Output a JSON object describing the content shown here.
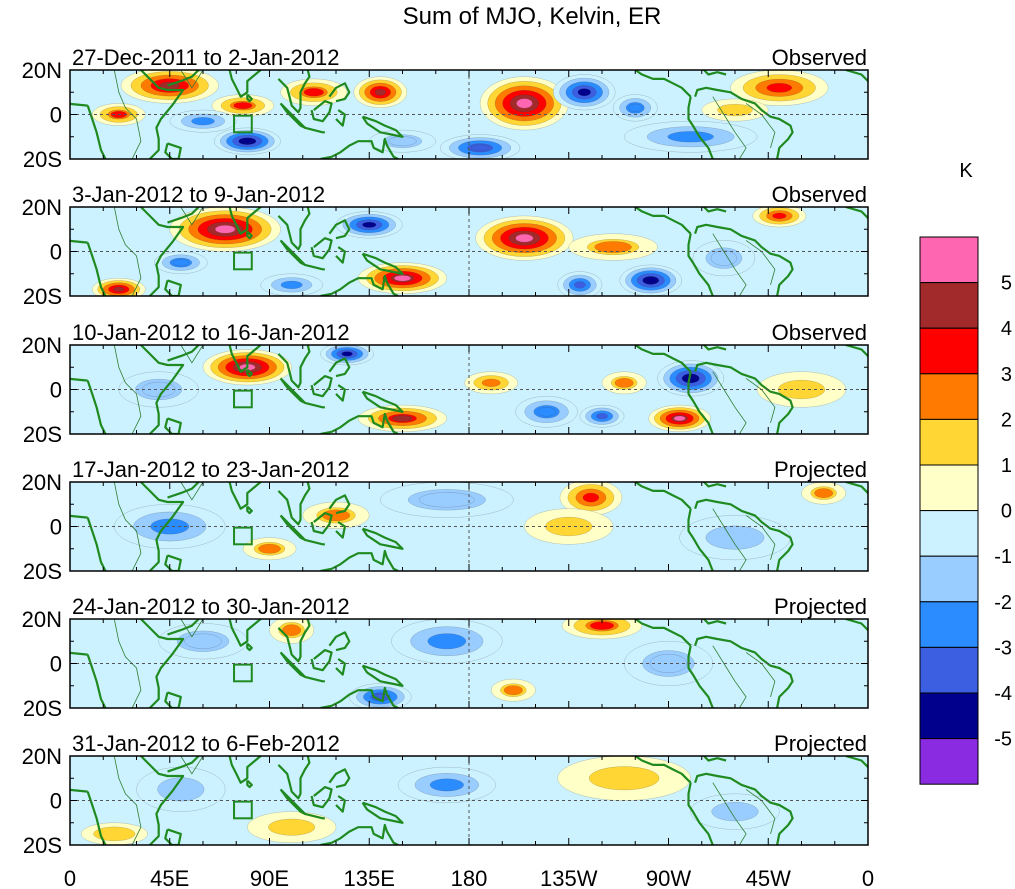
{
  "chart_data": {
    "type": "heatmap",
    "title": "Sum of MJO, Kelvin, ER",
    "x_tick_labels": [
      "0",
      "45E",
      "90E",
      "135E",
      "180",
      "135W",
      "90W",
      "45W",
      "0"
    ],
    "x_tick_degrees": [
      0,
      45,
      90,
      135,
      180,
      225,
      270,
      315,
      360
    ],
    "y_tick_labels": [
      "20N",
      "0",
      "20S"
    ],
    "y_tick_degrees": [
      20,
      0,
      -20
    ],
    "xlim": [
      0,
      360
    ],
    "ylim": [
      -20,
      20
    ],
    "colorbar": {
      "unit_label": "K",
      "tick_labels": [
        "5",
        "4",
        "3",
        "2",
        "1",
        "0",
        "-1",
        "-2",
        "-3",
        "-4",
        "-5"
      ],
      "colors": [
        "#ff66b2",
        "#a32a2a",
        "#ff0000",
        "#ff7a00",
        "#ffd633",
        "#ffffc8",
        "#ccf2ff",
        "#99ccff",
        "#2b8cff",
        "#3b5fe0",
        "#00008c",
        "#8a2be2"
      ]
    },
    "panels": [
      {
        "date_range": "27-Dec-2011 to 2-Jan-2012",
        "status": "Observed",
        "blobs": [
          {
            "lon": 45,
            "lat": 13,
            "rlon": 22,
            "rlat": 8,
            "value": 4.5
          },
          {
            "lon": 22,
            "lat": 0,
            "rlon": 12,
            "rlat": 5,
            "value": 3
          },
          {
            "lon": 78,
            "lat": 4,
            "rlon": 14,
            "rlat": 5,
            "value": 3
          },
          {
            "lon": 110,
            "lat": 10,
            "rlon": 15,
            "rlat": 6,
            "value": 3
          },
          {
            "lon": 140,
            "lat": 10,
            "rlon": 12,
            "rlat": 7,
            "value": 4.5
          },
          {
            "lon": 205,
            "lat": 5,
            "rlon": 20,
            "rlat": 12,
            "value": 5.5
          },
          {
            "lon": 320,
            "lat": 12,
            "rlon": 22,
            "rlat": 8,
            "value": 3.5
          },
          {
            "lon": 232,
            "lat": 10,
            "rlon": 14,
            "rlat": 8,
            "value": -4.5
          },
          {
            "lon": 255,
            "lat": 3,
            "rlon": 10,
            "rlat": 6,
            "value": -3
          },
          {
            "lon": 80,
            "lat": -12,
            "rlon": 15,
            "rlat": 6,
            "value": -5
          },
          {
            "lon": 60,
            "lat": -3,
            "rlon": 15,
            "rlat": 5,
            "value": -2.5
          },
          {
            "lon": 185,
            "lat": -15,
            "rlon": 18,
            "rlat": 6,
            "value": -4
          },
          {
            "lon": 150,
            "lat": -12,
            "rlon": 15,
            "rlat": 5,
            "value": -2
          },
          {
            "lon": 280,
            "lat": -10,
            "rlon": 30,
            "rlat": 7,
            "value": -2.5
          },
          {
            "lon": 300,
            "lat": 2,
            "rlon": 15,
            "rlat": 5,
            "value": 1.5
          }
        ]
      },
      {
        "date_range": "3-Jan-2012 to 9-Jan-2012",
        "status": "Observed",
        "blobs": [
          {
            "lon": 70,
            "lat": 10,
            "rlon": 25,
            "rlat": 10,
            "value": 5.5
          },
          {
            "lon": 205,
            "lat": 6,
            "rlon": 22,
            "rlat": 10,
            "value": 5.5
          },
          {
            "lon": 150,
            "lat": -12,
            "rlon": 20,
            "rlat": 7,
            "value": 5
          },
          {
            "lon": 22,
            "lat": -17,
            "rlon": 12,
            "rlat": 5,
            "value": 4.5
          },
          {
            "lon": 320,
            "lat": 16,
            "rlon": 12,
            "rlat": 5,
            "value": 3.5
          },
          {
            "lon": 245,
            "lat": 2,
            "rlon": 20,
            "rlat": 6,
            "value": 2
          },
          {
            "lon": 135,
            "lat": 12,
            "rlon": 15,
            "rlat": 6,
            "value": -4.5
          },
          {
            "lon": 262,
            "lat": -13,
            "rlon": 14,
            "rlat": 7,
            "value": -5
          },
          {
            "lon": 230,
            "lat": -15,
            "rlon": 10,
            "rlat": 6,
            "value": -3.5
          },
          {
            "lon": 50,
            "lat": -5,
            "rlon": 12,
            "rlat": 5,
            "value": -3
          },
          {
            "lon": 100,
            "lat": -15,
            "rlon": 14,
            "rlat": 5,
            "value": -2.5
          },
          {
            "lon": 295,
            "lat": -3,
            "rlon": 14,
            "rlat": 8,
            "value": -2
          }
        ]
      },
      {
        "date_range": "10-Jan-2012 to 16-Jan-2012",
        "status": "Observed",
        "blobs": [
          {
            "lon": 80,
            "lat": 10,
            "rlon": 20,
            "rlat": 8,
            "value": 5.5
          },
          {
            "lon": 150,
            "lat": -13,
            "rlon": 20,
            "rlat": 6,
            "value": 4
          },
          {
            "lon": 275,
            "lat": -13,
            "rlon": 14,
            "rlat": 6,
            "value": 5
          },
          {
            "lon": 190,
            "lat": 3,
            "rlon": 12,
            "rlat": 5,
            "value": 2.5
          },
          {
            "lon": 250,
            "lat": 3,
            "rlon": 10,
            "rlat": 5,
            "value": 2
          },
          {
            "lon": 125,
            "lat": 16,
            "rlon": 12,
            "rlat": 5,
            "value": -4.5
          },
          {
            "lon": 280,
            "lat": 5,
            "rlon": 15,
            "rlat": 8,
            "value": -5
          },
          {
            "lon": 215,
            "lat": -10,
            "rlon": 14,
            "rlat": 7,
            "value": -3
          },
          {
            "lon": 240,
            "lat": -12,
            "rlon": 10,
            "rlat": 5,
            "value": -3.5
          },
          {
            "lon": 40,
            "lat": 0,
            "rlon": 18,
            "rlat": 8,
            "value": -2
          },
          {
            "lon": 330,
            "lat": 0,
            "rlon": 20,
            "rlat": 8,
            "value": 1.5
          }
        ]
      },
      {
        "date_range": "17-Jan-2012 to 23-Jan-2012",
        "status": "Projected",
        "blobs": [
          {
            "lon": 235,
            "lat": 13,
            "rlon": 14,
            "rlat": 8,
            "value": 3.5
          },
          {
            "lon": 120,
            "lat": 5,
            "rlon": 15,
            "rlat": 6,
            "value": 2
          },
          {
            "lon": 90,
            "lat": -10,
            "rlon": 12,
            "rlat": 5,
            "value": 2
          },
          {
            "lon": 225,
            "lat": 0,
            "rlon": 20,
            "rlat": 8,
            "value": 1.5
          },
          {
            "lon": 45,
            "lat": 0,
            "rlon": 25,
            "rlat": 10,
            "value": -2.5
          },
          {
            "lon": 170,
            "lat": 12,
            "rlon": 30,
            "rlat": 8,
            "value": -2
          },
          {
            "lon": 300,
            "lat": -5,
            "rlon": 25,
            "rlat": 10,
            "value": -1.5
          },
          {
            "lon": 340,
            "lat": 15,
            "rlon": 10,
            "rlat": 5,
            "value": 2
          }
        ]
      },
      {
        "date_range": "24-Jan-2012 to 30-Jan-2012",
        "status": "Projected",
        "blobs": [
          {
            "lon": 240,
            "lat": 17,
            "rlon": 18,
            "rlat": 6,
            "value": 3
          },
          {
            "lon": 100,
            "lat": 15,
            "rlon": 10,
            "rlat": 6,
            "value": 2
          },
          {
            "lon": 200,
            "lat": -12,
            "rlon": 10,
            "rlat": 5,
            "value": 2
          },
          {
            "lon": 140,
            "lat": -15,
            "rlon": 14,
            "rlat": 6,
            "value": -4
          },
          {
            "lon": 60,
            "lat": 10,
            "rlon": 20,
            "rlat": 8,
            "value": -2
          },
          {
            "lon": 170,
            "lat": 10,
            "rlon": 25,
            "rlat": 10,
            "value": -2.5
          },
          {
            "lon": 270,
            "lat": 0,
            "rlon": 20,
            "rlat": 10,
            "value": -2
          }
        ]
      },
      {
        "date_range": "31-Jan-2012 to 6-Feb-2012",
        "status": "Projected",
        "blobs": [
          {
            "lon": 170,
            "lat": 7,
            "rlon": 22,
            "rlat": 8,
            "value": -2.5
          },
          {
            "lon": 250,
            "lat": 10,
            "rlon": 30,
            "rlat": 10,
            "value": 1.5
          },
          {
            "lon": 100,
            "lat": -12,
            "rlon": 20,
            "rlat": 7,
            "value": 1.5
          },
          {
            "lon": 50,
            "lat": 5,
            "rlon": 20,
            "rlat": 10,
            "value": -1.5
          },
          {
            "lon": 300,
            "lat": -5,
            "rlon": 20,
            "rlat": 8,
            "value": -1.5
          },
          {
            "lon": 20,
            "lat": -15,
            "rlon": 15,
            "rlat": 5,
            "value": 1.2
          }
        ]
      }
    ]
  }
}
